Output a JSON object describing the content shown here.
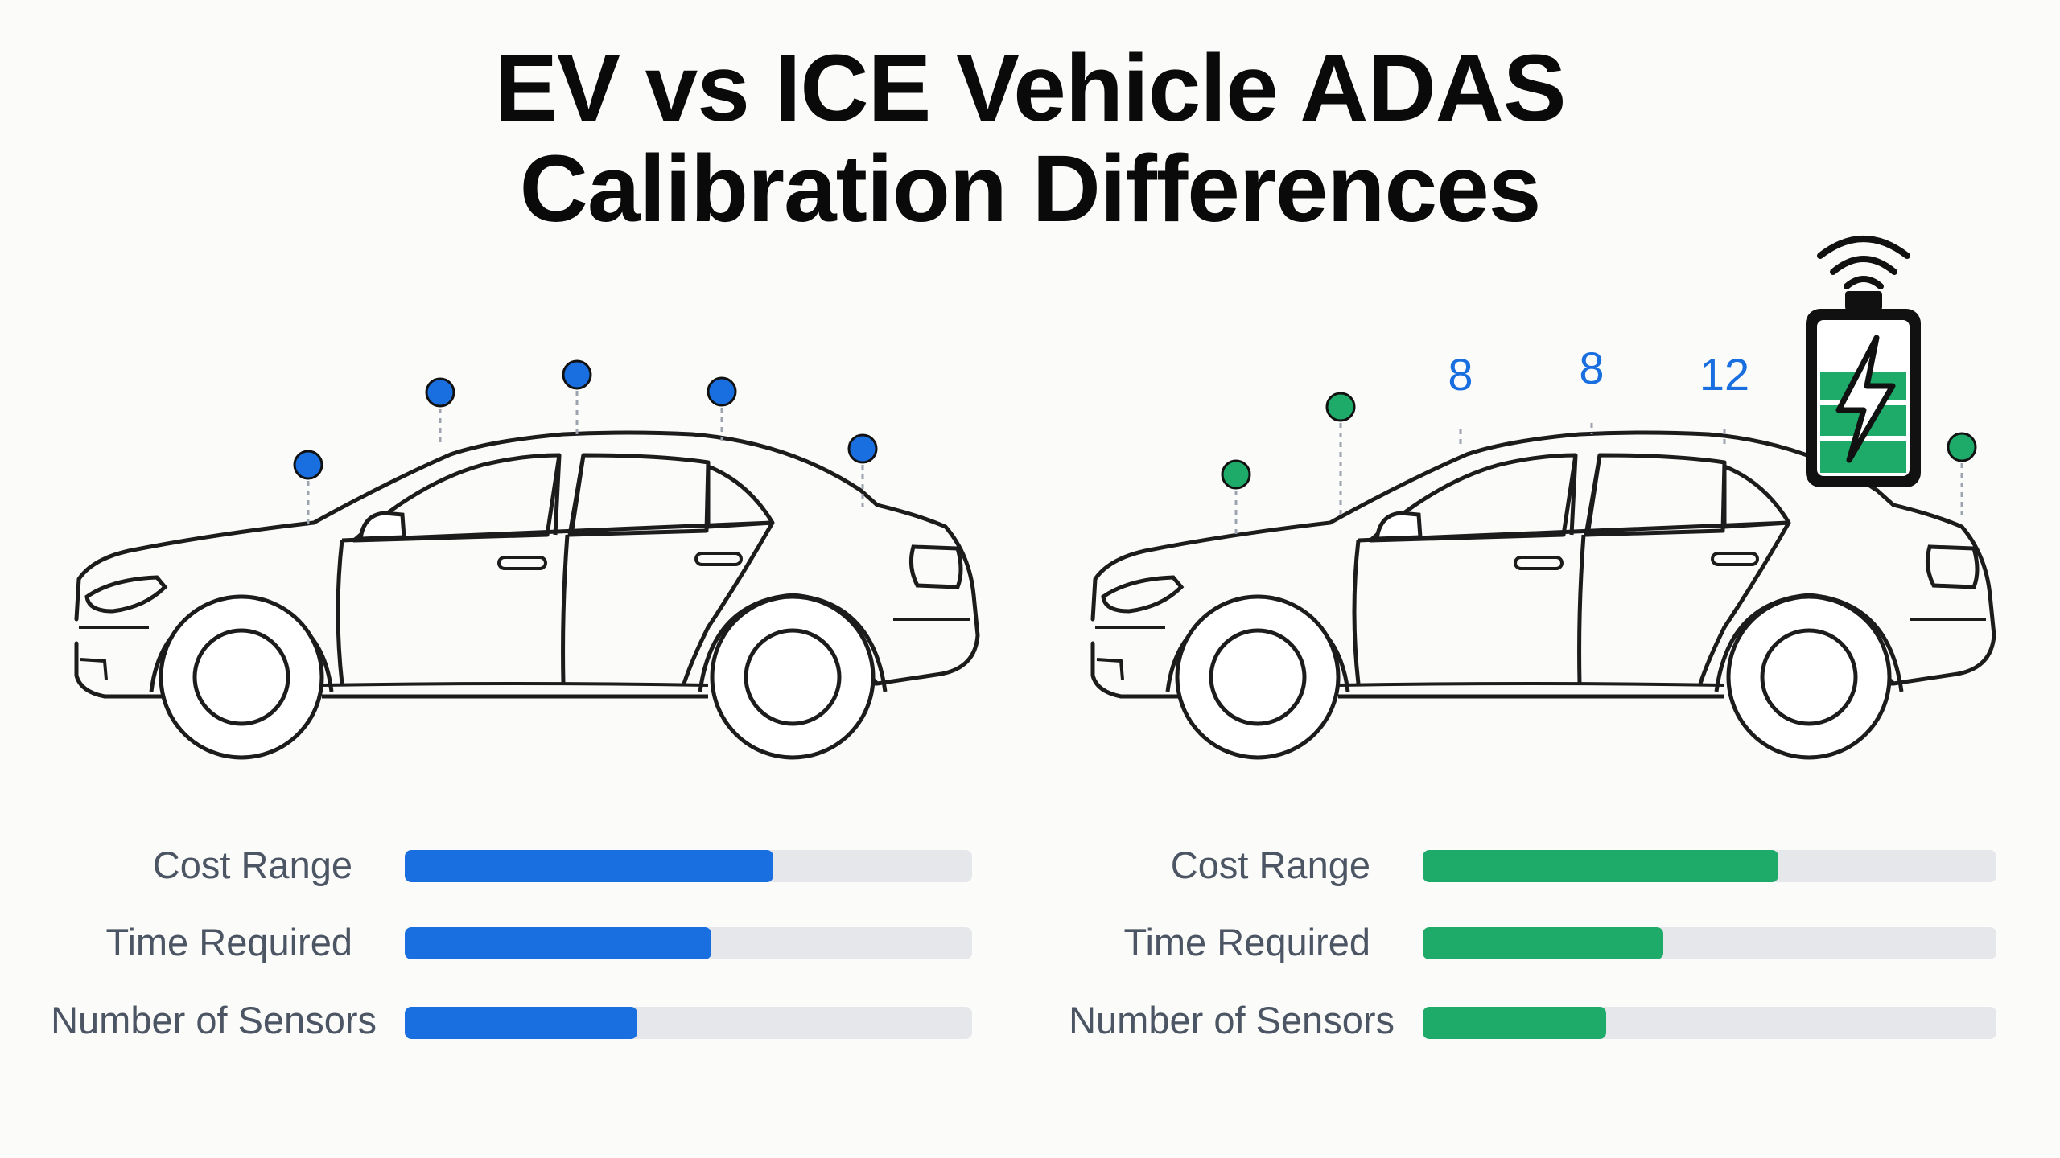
{
  "title": {
    "line1": "EV vs ICE Vehicle ADAS",
    "line2": "Calibration Differences"
  },
  "colors": {
    "left_accent": "#1a6fe0",
    "right_accent": "#1eab6a",
    "outline": "#1c1c1c",
    "track": "#e5e7eb",
    "label_text": "#4b5563"
  },
  "icons": {
    "right_panel": [
      "wifi-signal-icon",
      "battery-charging-icon",
      "lightning-bolt-icon"
    ]
  },
  "right_car": {
    "sensor_counts": [
      "8",
      "8",
      "12"
    ]
  },
  "metrics": {
    "labels": [
      "Cost Range",
      "Time Required",
      "Number of Sensors"
    ],
    "left_values": [
      0.65,
      0.54,
      0.41
    ],
    "right_values": [
      0.62,
      0.42,
      0.32
    ]
  }
}
